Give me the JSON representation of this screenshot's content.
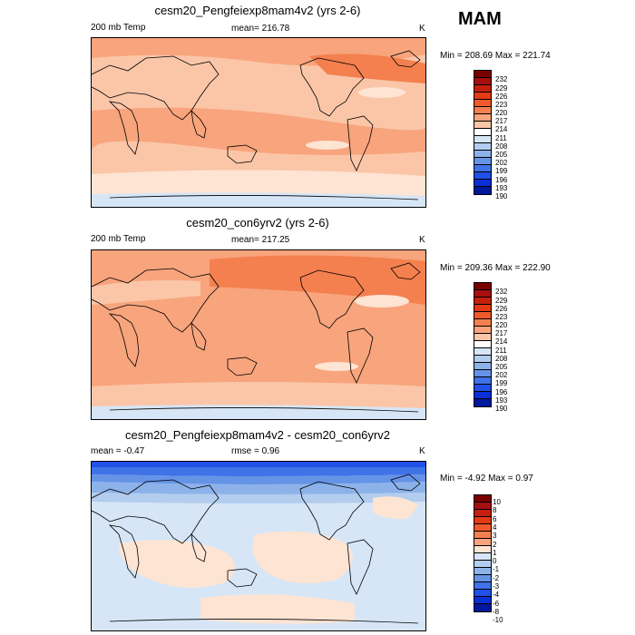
{
  "season": "MAM",
  "colors": {
    "abs_scale": [
      "#7a0000",
      "#a50f0f",
      "#c5200e",
      "#e43a13",
      "#f05a2a",
      "#f4804f",
      "#f8a47c",
      "#fbc6a8",
      "#fde4d3",
      "#ffffff",
      "#d6e6f7",
      "#b3cdef",
      "#8db2ea",
      "#6593e6",
      "#4072e8",
      "#2050e8",
      "#0a2fd8",
      "#00189c"
    ],
    "diff_scale": [
      "#7a0000",
      "#a50f0f",
      "#c5200e",
      "#e43a13",
      "#f05a2a",
      "#f4804f",
      "#f8a47c",
      "#fbc6a8",
      "#fde4d3",
      "#ffffff",
      "#d6e6f7",
      "#b3cdef",
      "#8db2ea",
      "#6593e6",
      "#4072e8",
      "#2050e8",
      "#0a2fd8",
      "#00189c"
    ],
    "coast": "#000000"
  },
  "chart_data": [
    {
      "type": "heatmap",
      "title": "cesm20_Pengfeiexp8mam4v2 (yrs 2-6)",
      "field": "200 mb Temp",
      "mean_text": "mean= 216.78",
      "units": "K",
      "minmax_text": "Min = 208.69 Max = 221.74",
      "min": 208.69,
      "max": 221.74,
      "levels": [
        "232",
        "229",
        "226",
        "223",
        "220",
        "217",
        "214",
        "211",
        "208",
        "205",
        "202",
        "199",
        "196",
        "193",
        "190"
      ]
    },
    {
      "type": "heatmap",
      "title": "cesm20_con6yrv2 (yrs 2-6)",
      "field": "200 mb Temp",
      "mean_text": "mean= 217.25",
      "units": "K",
      "minmax_text": "Min = 209.36 Max = 222.90",
      "min": 209.36,
      "max": 222.9,
      "levels": [
        "232",
        "229",
        "226",
        "223",
        "220",
        "217",
        "214",
        "211",
        "208",
        "205",
        "202",
        "199",
        "196",
        "193",
        "190"
      ]
    },
    {
      "type": "heatmap",
      "title": "cesm20_Pengfeiexp8mam4v2 - cesm20_con6yrv2",
      "mean_text": "mean =  -0.47",
      "rmse_text": "rmse =    0.96",
      "units": "K",
      "minmax_text": "Min =  -4.92 Max =   0.97",
      "min": -4.92,
      "max": 0.97,
      "levels": [
        "10",
        "8",
        "6",
        "4",
        "3",
        "2",
        "1",
        "0",
        "-1",
        "-2",
        "-3",
        "-4",
        "-6",
        "-8",
        "-10"
      ]
    }
  ]
}
